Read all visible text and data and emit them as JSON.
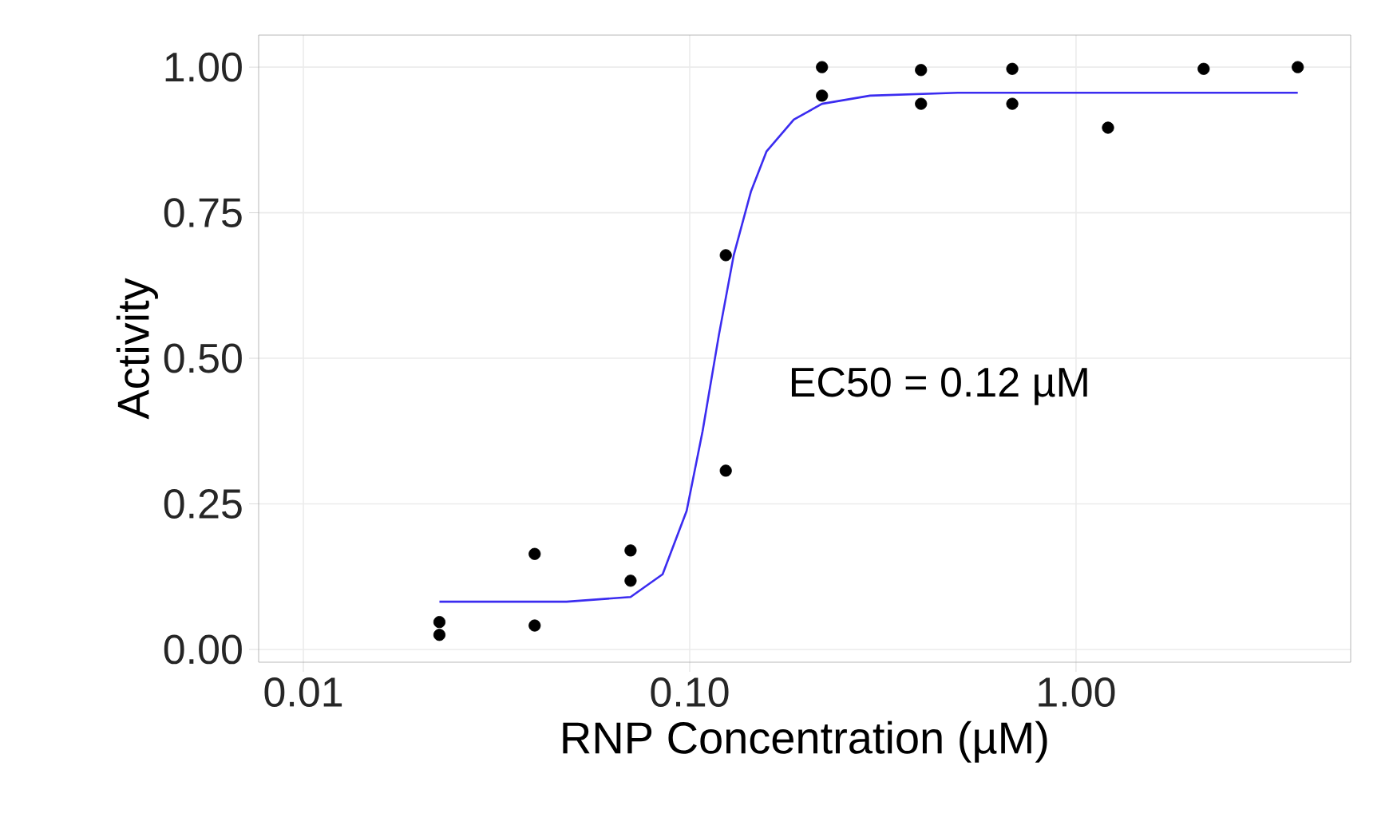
{
  "chart_data": {
    "type": "scatter",
    "xlabel": "RNP Concentration (µM)",
    "ylabel": "Activity",
    "log": "x",
    "grid": true,
    "xlim": [
      0.00766,
      5.14
    ],
    "ylim": [
      -0.022,
      1.055
    ],
    "xticks": [
      {
        "value": 0.01,
        "label": "0.01"
      },
      {
        "value": 0.1,
        "label": "0.10"
      },
      {
        "value": 1,
        "label": "1.00"
      }
    ],
    "yticks": [
      {
        "value": 0,
        "label": "0.00"
      },
      {
        "value": 0.25,
        "label": "0.25"
      },
      {
        "value": 0.5,
        "label": "0.50"
      },
      {
        "value": 0.75,
        "label": "0.75"
      },
      {
        "value": 1,
        "label": "1.00"
      }
    ],
    "annotations": [
      "EC50 = 0.12 µM"
    ],
    "series": [
      {
        "color": "#000000",
        "marker": "circle",
        "x": [
          0.0225,
          0.0225,
          0.0397,
          0.0397,
          0.0703,
          0.0703,
          0.124,
          0.124,
          0.22,
          0.22,
          0.397,
          0.397,
          0.684,
          0.684,
          1.21,
          2.14,
          3.75
        ],
        "values": [
          0.047,
          0.025,
          0.164,
          0.041,
          0.17,
          0.118,
          0.677,
          0.307,
          1.0,
          0.951,
          0.995,
          0.937,
          0.997,
          0.937,
          0.896,
          0.997,
          1.0
        ]
      },
      {
        "type": "line",
        "color": "#3b2cf0",
        "marker": "none",
        "x": [
          0.0225,
          0.048,
          0.0703,
          0.0851,
          0.0982,
          0.108,
          0.119,
          0.13,
          0.144,
          0.158,
          0.186,
          0.22,
          0.293,
          0.494,
          3.75
        ],
        "values": [
          0.082,
          0.082,
          0.09,
          0.129,
          0.238,
          0.375,
          0.54,
          0.677,
          0.786,
          0.855,
          0.91,
          0.937,
          0.951,
          0.956,
          0.956
        ]
      }
    ]
  }
}
